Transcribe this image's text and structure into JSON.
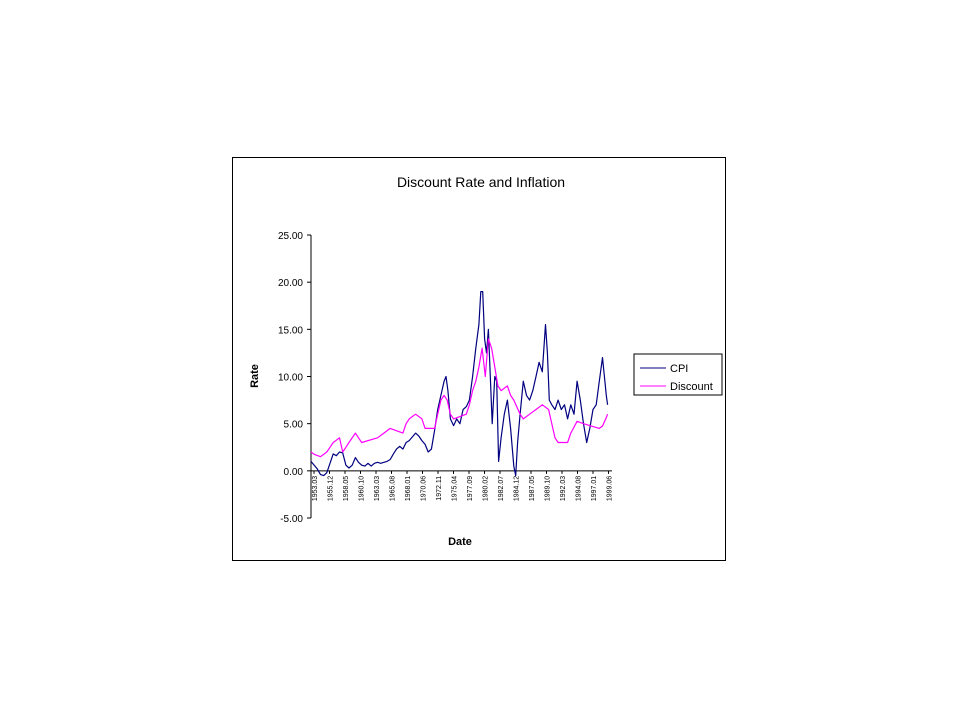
{
  "chart_data": {
    "type": "line",
    "title": "Discount Rate and Inflation",
    "xlabel": "Date",
    "ylabel": "Rate",
    "ylim": [
      -5,
      25
    ],
    "y_ticks": [
      "25.00",
      "20.00",
      "15.00",
      "10.00",
      "5.00",
      "0.00",
      "-5.00"
    ],
    "x_tick_labels": [
      "1953.03",
      "1955.12",
      "1958.05",
      "1960.10",
      "1963.03",
      "1965.08",
      "1968.01",
      "1970.06",
      "1972.11",
      "1975.04",
      "1977.09",
      "1980.02",
      "1982.07",
      "1984.12",
      "1987.05",
      "1989.10",
      "1992.03",
      "1994.08",
      "1997.01",
      "1999.06"
    ],
    "x_start": 1953.0,
    "x_end": 2000.5,
    "legend_position": "right",
    "grid": false,
    "series": [
      {
        "name": "CPI",
        "color": "#000080",
        "points": [
          [
            1953.0,
            1.0
          ],
          [
            1953.5,
            0.6
          ],
          [
            1954.0,
            0.2
          ],
          [
            1954.5,
            -0.4
          ],
          [
            1955.0,
            -0.5
          ],
          [
            1955.5,
            -0.2
          ],
          [
            1956.0,
            0.8
          ],
          [
            1956.5,
            1.8
          ],
          [
            1957.0,
            1.6
          ],
          [
            1957.5,
            2.0
          ],
          [
            1958.0,
            1.9
          ],
          [
            1958.5,
            0.6
          ],
          [
            1959.0,
            0.3
          ],
          [
            1959.5,
            0.6
          ],
          [
            1960.0,
            1.4
          ],
          [
            1960.5,
            0.9
          ],
          [
            1961.0,
            0.6
          ],
          [
            1961.5,
            0.5
          ],
          [
            1962.0,
            0.8
          ],
          [
            1962.5,
            0.5
          ],
          [
            1963.0,
            0.8
          ],
          [
            1963.5,
            0.9
          ],
          [
            1964.0,
            0.8
          ],
          [
            1964.5,
            0.9
          ],
          [
            1965.0,
            1.0
          ],
          [
            1965.5,
            1.2
          ],
          [
            1966.0,
            1.8
          ],
          [
            1966.5,
            2.3
          ],
          [
            1967.0,
            2.6
          ],
          [
            1967.5,
            2.3
          ],
          [
            1968.0,
            3.0
          ],
          [
            1968.5,
            3.2
          ],
          [
            1969.0,
            3.6
          ],
          [
            1969.5,
            4.0
          ],
          [
            1970.0,
            3.7
          ],
          [
            1970.5,
            3.2
          ],
          [
            1971.0,
            2.8
          ],
          [
            1971.5,
            2.0
          ],
          [
            1972.0,
            2.3
          ],
          [
            1972.5,
            4.3
          ],
          [
            1973.0,
            6.5
          ],
          [
            1973.5,
            8.0
          ],
          [
            1974.0,
            9.5
          ],
          [
            1974.3,
            10.0
          ],
          [
            1974.6,
            8.5
          ],
          [
            1975.0,
            5.5
          ],
          [
            1975.5,
            4.8
          ],
          [
            1976.0,
            5.5
          ],
          [
            1976.5,
            5.0
          ],
          [
            1977.0,
            6.5
          ],
          [
            1977.5,
            6.8
          ],
          [
            1978.0,
            7.5
          ],
          [
            1978.5,
            10.0
          ],
          [
            1979.0,
            13.0
          ],
          [
            1979.5,
            15.5
          ],
          [
            1979.8,
            19.0
          ],
          [
            1980.1,
            19.0
          ],
          [
            1980.4,
            14.0
          ],
          [
            1980.7,
            12.5
          ],
          [
            1981.0,
            15.0
          ],
          [
            1981.3,
            10.0
          ],
          [
            1981.6,
            5.0
          ],
          [
            1982.0,
            10.0
          ],
          [
            1982.3,
            9.5
          ],
          [
            1982.6,
            1.0
          ],
          [
            1983.0,
            3.5
          ],
          [
            1983.5,
            6.0
          ],
          [
            1984.0,
            7.5
          ],
          [
            1984.5,
            4.5
          ],
          [
            1985.0,
            0.5
          ],
          [
            1985.3,
            -0.5
          ],
          [
            1985.6,
            3.0
          ],
          [
            1986.0,
            6.0
          ],
          [
            1986.5,
            9.5
          ],
          [
            1987.0,
            8.0
          ],
          [
            1987.5,
            7.5
          ],
          [
            1988.0,
            8.5
          ],
          [
            1988.5,
            10.0
          ],
          [
            1989.0,
            11.5
          ],
          [
            1989.5,
            10.5
          ],
          [
            1990.0,
            15.5
          ],
          [
            1990.3,
            12.5
          ],
          [
            1990.6,
            7.5
          ],
          [
            1991.0,
            7.0
          ],
          [
            1991.5,
            6.5
          ],
          [
            1992.0,
            7.5
          ],
          [
            1992.5,
            6.5
          ],
          [
            1993.0,
            7.0
          ],
          [
            1993.5,
            5.5
          ],
          [
            1994.0,
            7.0
          ],
          [
            1994.5,
            6.0
          ],
          [
            1995.0,
            9.5
          ],
          [
            1995.5,
            7.5
          ],
          [
            1996.0,
            5.0
          ],
          [
            1996.5,
            3.0
          ],
          [
            1997.0,
            4.5
          ],
          [
            1997.5,
            6.5
          ],
          [
            1998.0,
            7.0
          ],
          [
            1998.5,
            9.5
          ],
          [
            1999.0,
            12.0
          ],
          [
            1999.3,
            10.0
          ],
          [
            1999.6,
            8.0
          ],
          [
            1999.8,
            7.0
          ]
        ]
      },
      {
        "name": "Discount",
        "color": "#ff00ff",
        "points": [
          [
            1953.0,
            2.0
          ],
          [
            1953.5,
            1.75
          ],
          [
            1954.5,
            1.5
          ],
          [
            1955.5,
            2.0
          ],
          [
            1956.0,
            2.5
          ],
          [
            1956.5,
            3.0
          ],
          [
            1957.5,
            3.5
          ],
          [
            1958.0,
            2.0
          ],
          [
            1958.5,
            2.5
          ],
          [
            1959.0,
            3.0
          ],
          [
            1959.5,
            3.5
          ],
          [
            1960.0,
            4.0
          ],
          [
            1960.5,
            3.5
          ],
          [
            1961.0,
            3.0
          ],
          [
            1963.5,
            3.5
          ],
          [
            1964.5,
            4.0
          ],
          [
            1965.5,
            4.5
          ],
          [
            1967.5,
            4.0
          ],
          [
            1968.0,
            5.0
          ],
          [
            1968.5,
            5.5
          ],
          [
            1969.5,
            6.0
          ],
          [
            1970.5,
            5.5
          ],
          [
            1971.0,
            4.5
          ],
          [
            1972.5,
            4.5
          ],
          [
            1973.0,
            6.0
          ],
          [
            1973.5,
            7.5
          ],
          [
            1974.0,
            8.0
          ],
          [
            1974.5,
            7.5
          ],
          [
            1975.0,
            6.0
          ],
          [
            1975.5,
            5.5
          ],
          [
            1977.5,
            6.0
          ],
          [
            1978.0,
            7.0
          ],
          [
            1978.5,
            8.5
          ],
          [
            1979.0,
            9.5
          ],
          [
            1979.5,
            11.0
          ],
          [
            1980.0,
            13.0
          ],
          [
            1980.5,
            10.0
          ],
          [
            1981.0,
            14.0
          ],
          [
            1981.5,
            13.0
          ],
          [
            1982.0,
            11.0
          ],
          [
            1982.5,
            9.0
          ],
          [
            1983.0,
            8.5
          ],
          [
            1984.0,
            9.0
          ],
          [
            1984.5,
            8.0
          ],
          [
            1985.0,
            7.5
          ],
          [
            1986.0,
            6.0
          ],
          [
            1986.5,
            5.5
          ],
          [
            1987.5,
            6.0
          ],
          [
            1988.5,
            6.5
          ],
          [
            1989.5,
            7.0
          ],
          [
            1990.5,
            6.5
          ],
          [
            1991.0,
            5.0
          ],
          [
            1991.5,
            3.5
          ],
          [
            1992.0,
            3.0
          ],
          [
            1993.5,
            3.0
          ],
          [
            1994.0,
            4.0
          ],
          [
            1995.0,
            5.25
          ],
          [
            1996.0,
            5.0
          ],
          [
            1998.5,
            4.5
          ],
          [
            1999.0,
            4.75
          ],
          [
            1999.5,
            5.5
          ],
          [
            1999.8,
            6.0
          ]
        ]
      }
    ]
  }
}
